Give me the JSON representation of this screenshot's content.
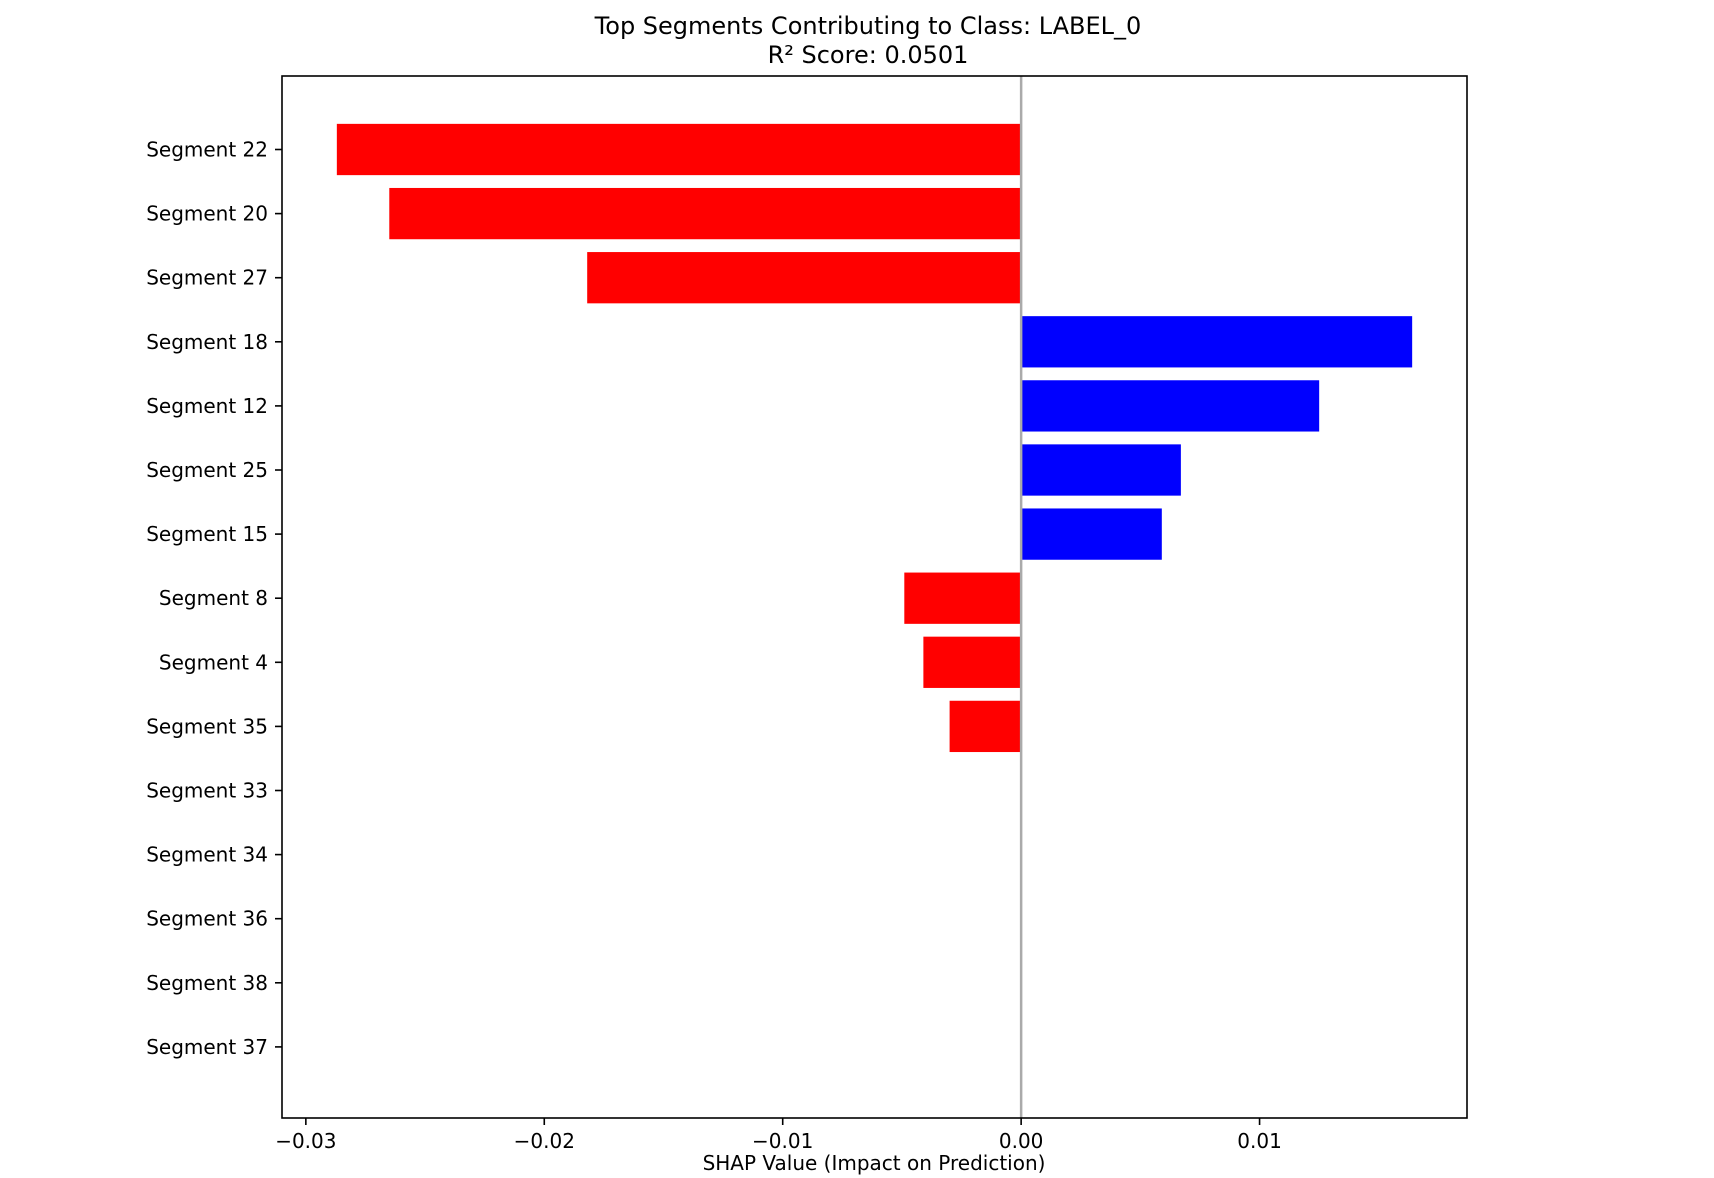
{
  "chart_data": {
    "type": "bar",
    "orientation": "horizontal",
    "title": "Top Segments Contributing to Class: LABEL_0",
    "subtitle": "R² Score: 0.0501",
    "xlabel": "SHAP Value (Impact on Prediction)",
    "ylabel": "",
    "categories": [
      "Segment 22",
      "Segment 20",
      "Segment 27",
      "Segment 18",
      "Segment 12",
      "Segment 25",
      "Segment 15",
      "Segment 8",
      "Segment 4",
      "Segment 35",
      "Segment 33",
      "Segment 34",
      "Segment 36",
      "Segment 38",
      "Segment 37"
    ],
    "values": [
      -0.0287,
      -0.0265,
      -0.0182,
      0.0164,
      0.0125,
      0.0067,
      0.0059,
      -0.0049,
      -0.0041,
      -0.003,
      0,
      0,
      0,
      0,
      0
    ],
    "xlim": [
      -0.031,
      0.0187
    ],
    "xticks": [
      -0.03,
      -0.02,
      -0.01,
      0.0,
      0.01
    ],
    "xtick_labels": [
      "−0.03",
      "−0.02",
      "−0.01",
      "0.00",
      "0.01"
    ],
    "grid": false,
    "legend": "none",
    "colors": {
      "positive": "#0000ff",
      "negative": "#ff0000",
      "zero_line": "#aaaaaa",
      "axes": "#000000"
    }
  }
}
